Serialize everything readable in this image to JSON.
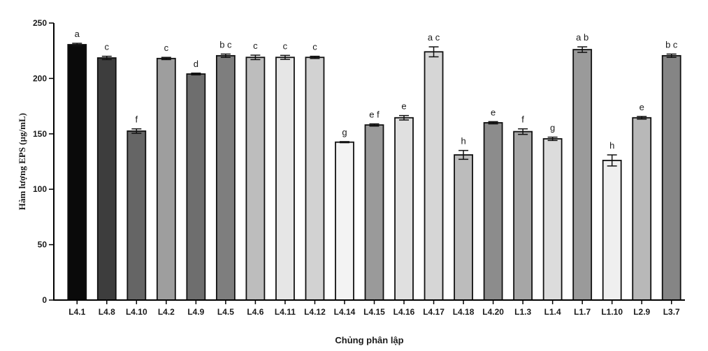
{
  "chart_data": {
    "type": "bar",
    "xlabel": "Chủng phân lập",
    "ylabel": "Hàm lượng EPS (µg/mL)",
    "ylim": [
      0,
      250
    ],
    "yticks": [
      0,
      50,
      100,
      150,
      200,
      250
    ],
    "grid": false,
    "legend": "none",
    "categories": [
      "L4.1",
      "L4.8",
      "L4.10",
      "L4.2",
      "L4.9",
      "L4.5",
      "L4.6",
      "L4.11",
      "L4.12",
      "L4.14",
      "L4.15",
      "L4.16",
      "L4.17",
      "L4.18",
      "L4.20",
      "L1.3",
      "L1.4",
      "L1.7",
      "L1.10",
      "L2.9",
      "L3.7"
    ],
    "values": [
      230.5,
      218.5,
      152.5,
      218.0,
      204.0,
      220.5,
      219.0,
      219.0,
      219.0,
      142.5,
      158.0,
      164.5,
      224.0,
      131.0,
      160.0,
      152.0,
      145.5,
      226.0,
      126.0,
      164.5,
      220.5
    ],
    "errors": [
      1.2,
      1.5,
      2.0,
      1.0,
      0.8,
      1.5,
      2.0,
      1.8,
      1.0,
      0.5,
      1.0,
      2.0,
      4.5,
      4.0,
      1.0,
      2.5,
      1.5,
      2.5,
      5.0,
      1.2,
      1.5
    ],
    "significance_labels": [
      "a",
      "c",
      "f",
      "c",
      "d",
      "b c",
      "c",
      "c",
      "c",
      "g",
      "e f",
      "e",
      "a c",
      "h",
      "e",
      "f",
      "g",
      "a b",
      "h",
      "e",
      "b c"
    ],
    "bar_colors": [
      "#0a0a0a",
      "#3d3d3d",
      "#656565",
      "#9e9e9e",
      "#6e6e6e",
      "#7e7e7e",
      "#bdbdbd",
      "#e6e6e6",
      "#d2d2d2",
      "#f3f3f3",
      "#9a9a9a",
      "#e0e0e0",
      "#d6d6d6",
      "#bcbcbc",
      "#8c8c8c",
      "#a6a6a6",
      "#dcdcdc",
      "#9a9a9a",
      "#efefef",
      "#b8b8b8",
      "#858585"
    ]
  }
}
